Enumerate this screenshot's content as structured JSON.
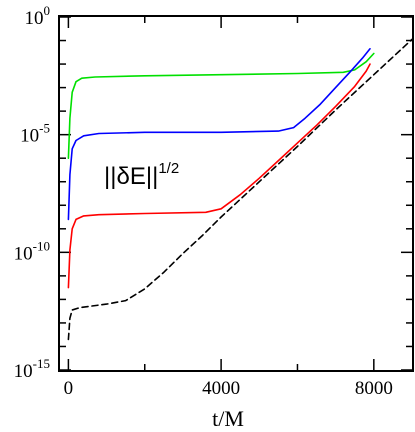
{
  "chart_data": {
    "type": "line",
    "xlabel": "t/M",
    "ylabel": "",
    "x_scale": "linear",
    "y_scale": "log",
    "xlim": [
      -220,
      9000
    ],
    "ylim_exponent": [
      -15,
      0
    ],
    "x_ticks": [
      {
        "value": 0,
        "label": "0"
      },
      {
        "value": 4000,
        "label": "4000"
      },
      {
        "value": 8000,
        "label": "8000"
      }
    ],
    "y_ticks": [
      {
        "exp": 0,
        "base": "10",
        "sup": "0"
      },
      {
        "exp": -5,
        "base": "10",
        "sup": "-5"
      },
      {
        "exp": -10,
        "base": "10",
        "sup": "-10"
      },
      {
        "exp": -15,
        "base": "10",
        "sup": "-15"
      }
    ],
    "annotation": {
      "base": "||δE||",
      "sup": "1/2"
    },
    "grid": false,
    "series": [
      {
        "color": "#00e000",
        "dash": false,
        "points": [
          [
            0,
            -6.0
          ],
          [
            40,
            -4.3
          ],
          [
            100,
            -3.2
          ],
          [
            200,
            -2.75
          ],
          [
            350,
            -2.6
          ],
          [
            700,
            -2.55
          ],
          [
            2000,
            -2.5
          ],
          [
            4000,
            -2.45
          ],
          [
            6000,
            -2.4
          ],
          [
            7200,
            -2.35
          ],
          [
            7500,
            -2.25
          ],
          [
            7800,
            -1.9
          ],
          [
            8000,
            -1.55
          ]
        ]
      },
      {
        "color": "#0000ff",
        "dash": false,
        "points": [
          [
            0,
            -8.6
          ],
          [
            40,
            -6.7
          ],
          [
            100,
            -5.6
          ],
          [
            200,
            -5.25
          ],
          [
            400,
            -5.05
          ],
          [
            800,
            -4.95
          ],
          [
            2000,
            -4.9
          ],
          [
            4000,
            -4.9
          ],
          [
            5500,
            -4.85
          ],
          [
            5900,
            -4.7
          ],
          [
            6200,
            -4.3
          ],
          [
            6600,
            -3.7
          ],
          [
            7000,
            -3.0
          ],
          [
            7400,
            -2.3
          ],
          [
            7700,
            -1.75
          ],
          [
            7900,
            -1.35
          ]
        ]
      },
      {
        "color": "#ff0000",
        "dash": false,
        "points": [
          [
            0,
            -11.5
          ],
          [
            40,
            -9.9
          ],
          [
            100,
            -9.0
          ],
          [
            200,
            -8.6
          ],
          [
            400,
            -8.45
          ],
          [
            800,
            -8.4
          ],
          [
            2000,
            -8.35
          ],
          [
            3600,
            -8.3
          ],
          [
            4000,
            -8.15
          ],
          [
            4500,
            -7.55
          ],
          [
            5000,
            -6.85
          ],
          [
            5500,
            -6.1
          ],
          [
            6000,
            -5.35
          ],
          [
            6500,
            -4.6
          ],
          [
            7000,
            -3.8
          ],
          [
            7500,
            -2.95
          ],
          [
            7800,
            -2.3
          ],
          [
            7900,
            -2.0
          ]
        ]
      },
      {
        "color": "#000000",
        "dash": true,
        "points": [
          [
            0,
            -13.7
          ],
          [
            40,
            -12.8
          ],
          [
            100,
            -12.45
          ],
          [
            300,
            -12.35
          ],
          [
            1000,
            -12.2
          ],
          [
            1500,
            -12.05
          ],
          [
            2000,
            -11.55
          ],
          [
            2500,
            -10.85
          ],
          [
            3000,
            -10.05
          ],
          [
            3500,
            -9.3
          ],
          [
            4000,
            -8.5
          ],
          [
            5000,
            -7.0
          ],
          [
            6000,
            -5.5
          ],
          [
            7000,
            -3.95
          ],
          [
            8000,
            -2.45
          ],
          [
            9000,
            -0.95
          ]
        ]
      }
    ]
  }
}
